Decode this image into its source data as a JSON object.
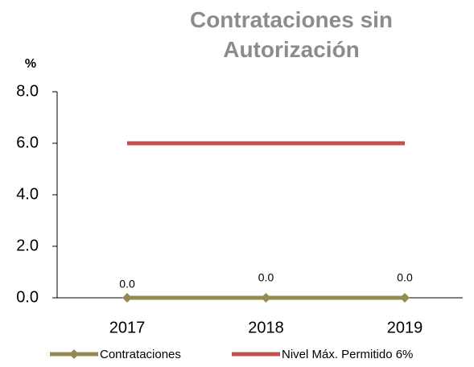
{
  "chart_data": {
    "type": "line",
    "title": "Contrataciones sin Autorización",
    "y_label": "%",
    "categories": [
      "2017",
      "2018",
      "2019"
    ],
    "series": [
      {
        "name": "Contrataciones",
        "color": "#948a54",
        "values": [
          0,
          0,
          0
        ],
        "value_labels": [
          "0.0",
          "0.0",
          "0.0"
        ],
        "marker": "diamond"
      },
      {
        "name": "Nivel Máx. Permitido 6%",
        "color": "#c0504d",
        "values": [
          6,
          6,
          6
        ]
      }
    ],
    "ylim": [
      0,
      8
    ],
    "yticks": [
      {
        "value": 0,
        "label": "0.0"
      },
      {
        "value": 2,
        "label": "2.0"
      },
      {
        "value": 4,
        "label": "4.0"
      },
      {
        "value": 6,
        "label": "6.0"
      },
      {
        "value": 8,
        "label": "8.0"
      }
    ],
    "grid": false,
    "legend": "bottom"
  }
}
